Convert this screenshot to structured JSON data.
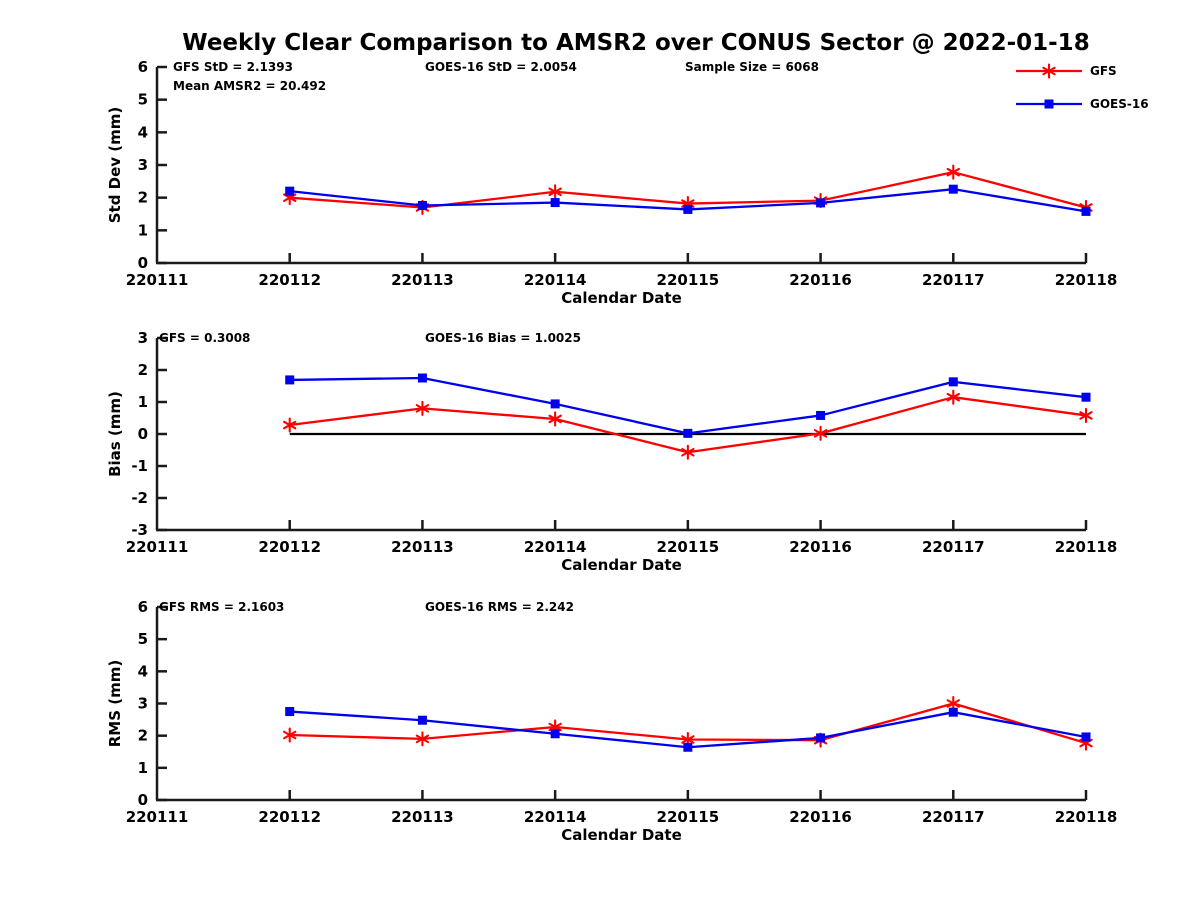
{
  "title": "Weekly Clear Comparison to AMSR2 over CONUS Sector @ 2022-01-18",
  "colors": {
    "gfs": "#ff0000",
    "goes16": "#0000ee",
    "axis": "#1a1a1a",
    "text": "#000000",
    "zero_line": "#000000"
  },
  "legend": {
    "items": [
      {
        "label": "GFS",
        "color": "#ff0000",
        "marker": "asterisk"
      },
      {
        "label": "GOES-16",
        "color": "#0000ee",
        "marker": "square"
      }
    ]
  },
  "x_axis": {
    "label": "Calendar Date",
    "categories": [
      "220111",
      "220112",
      "220113",
      "220114",
      "220115",
      "220116",
      "220117",
      "220118"
    ]
  },
  "chart_data": [
    {
      "type": "line",
      "name": "std-dev",
      "ylabel": "Std Dev (mm)",
      "xlabel": "Calendar Date",
      "ylim": [
        0,
        6
      ],
      "yticks": [
        0,
        1,
        2,
        3,
        4,
        5,
        6
      ],
      "x": [
        "220112",
        "220113",
        "220114",
        "220115",
        "220116",
        "220117",
        "220118"
      ],
      "series": [
        {
          "name": "GFS",
          "color": "#ff0000",
          "marker": "asterisk",
          "values": [
            2.0,
            1.7,
            2.18,
            1.82,
            1.91,
            2.78,
            1.7
          ]
        },
        {
          "name": "GOES-16",
          "color": "#0000ee",
          "marker": "square",
          "values": [
            2.2,
            1.76,
            1.85,
            1.64,
            1.84,
            2.26,
            1.58
          ]
        }
      ],
      "annotations": [
        {
          "text": "GFS StD = 2.1393",
          "dx": 16,
          "row": 0
        },
        {
          "text": "Mean AMSR2 = 20.492",
          "dx": 16,
          "row": 1
        },
        {
          "text": "GOES-16 StD = 2.0054",
          "dx": 268,
          "row": 0
        },
        {
          "text": "Sample Size = 6068",
          "dx": 528,
          "row": 0
        }
      ],
      "zero_line": false
    },
    {
      "type": "line",
      "name": "bias",
      "ylabel": "Bias (mm)",
      "xlabel": "Calendar Date",
      "ylim": [
        -3,
        3
      ],
      "yticks": [
        -3,
        -2,
        -1,
        0,
        1,
        2,
        3
      ],
      "x": [
        "220112",
        "220113",
        "220114",
        "220115",
        "220116",
        "220117",
        "220118"
      ],
      "series": [
        {
          "name": "GFS",
          "color": "#ff0000",
          "marker": "asterisk",
          "values": [
            0.28,
            0.8,
            0.47,
            -0.57,
            0.02,
            1.15,
            0.58
          ]
        },
        {
          "name": "GOES-16",
          "color": "#0000ee",
          "marker": "square",
          "values": [
            1.69,
            1.75,
            0.94,
            0.02,
            0.58,
            1.63,
            1.15
          ]
        }
      ],
      "annotations": [
        {
          "text": "GFS = 0.3008",
          "dx": 2,
          "row": 0
        },
        {
          "text": "GOES-16 Bias  = 1.0025",
          "dx": 268,
          "row": 0
        }
      ],
      "zero_line": true
    },
    {
      "type": "line",
      "name": "rms",
      "ylabel": "RMS (mm)",
      "xlabel": "Calendar Date",
      "ylim": [
        0,
        6
      ],
      "yticks": [
        0,
        1,
        2,
        3,
        4,
        5,
        6
      ],
      "x": [
        "220112",
        "220113",
        "220114",
        "220115",
        "220116",
        "220117",
        "220118"
      ],
      "series": [
        {
          "name": "GFS",
          "color": "#ff0000",
          "marker": "asterisk",
          "values": [
            2.02,
            1.9,
            2.27,
            1.88,
            1.86,
            3.0,
            1.77
          ]
        },
        {
          "name": "GOES-16",
          "color": "#0000ee",
          "marker": "square",
          "values": [
            2.75,
            2.48,
            2.06,
            1.64,
            1.93,
            2.73,
            1.96
          ]
        }
      ],
      "annotations": [
        {
          "text": "GFS RMS = 2.1603",
          "dx": 2,
          "row": 0
        },
        {
          "text": "GOES-16 RMS = 2.242",
          "dx": 268,
          "row": 0
        }
      ],
      "zero_line": false
    }
  ]
}
